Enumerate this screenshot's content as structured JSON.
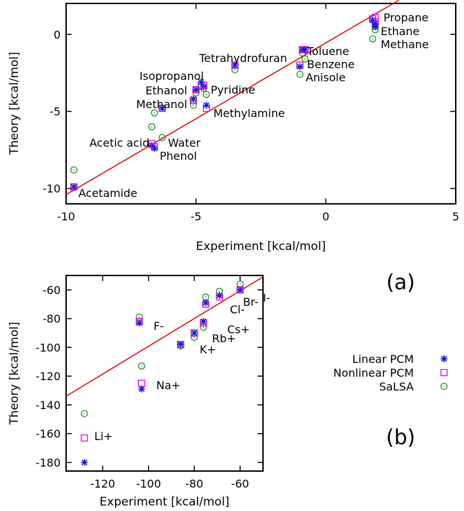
{
  "colors": {
    "linear": "#1b1bd6",
    "nonlinear": "#e400e4",
    "salsa": "#1f8f1f",
    "fit": "#e00000"
  },
  "legend": {
    "items": [
      {
        "label": "Linear PCM",
        "marker": "star"
      },
      {
        "label": "Nonlinear PCM",
        "marker": "square"
      },
      {
        "label": "SaLSA",
        "marker": "circle"
      }
    ]
  },
  "panel_labels": {
    "a": "(a)",
    "b": "(b)"
  },
  "chart_data": [
    {
      "type": "scatter",
      "panel": "(a)",
      "xlabel": "Experiment [kcal/mol]",
      "ylabel": "Theory [kcal/mol]",
      "xlim": [
        -10,
        5
      ],
      "ylim": [
        -11,
        2
      ],
      "xticks": [
        -10,
        -5,
        0,
        5
      ],
      "yticks": [
        -10,
        -5,
        0
      ],
      "fit_line": [
        [
          -10,
          -10.4
        ],
        [
          2.8,
          2.2
        ]
      ],
      "points": [
        {
          "name": "Propane",
          "x": 1.9,
          "linear": 0.7,
          "nonlinear": 1.1,
          "salsa": 0.5
        },
        {
          "name": "Ethane",
          "x": 1.9,
          "linear": 0.5,
          "nonlinear": 0.8,
          "salsa": 0.3
        },
        {
          "name": "Methane",
          "x": 1.8,
          "linear": 0.9,
          "nonlinear": 1.0,
          "salsa": -0.3
        },
        {
          "name": "Toluene",
          "x": -0.9,
          "linear": -1.0,
          "nonlinear": -1.0,
          "salsa": -1.2
        },
        {
          "name": "Benzene",
          "x": -0.8,
          "linear": -1.0,
          "nonlinear": -1.0,
          "salsa": -1.6
        },
        {
          "name": "Anisole",
          "x": -1.0,
          "linear": -2.1,
          "nonlinear": -2.0,
          "salsa": -2.6
        },
        {
          "name": "Tetrahydrofuran",
          "x": -3.5,
          "linear": -2.0,
          "nonlinear": -2.0,
          "salsa": -2.3
        },
        {
          "name": "Pyridine",
          "x": -4.7,
          "linear": -3.4,
          "nonlinear": -3.3,
          "salsa": -3.5
        },
        {
          "name": "Isopropanol",
          "x": -4.8,
          "linear": -3.1,
          "nonlinear": -3.3,
          "salsa": -3.4
        },
        {
          "name": "Ethanol",
          "x": -5.0,
          "linear": -3.6,
          "nonlinear": -3.6,
          "salsa": -3.8
        },
        {
          "name": "Methanol",
          "x": -5.1,
          "linear": -4.2,
          "nonlinear": -4.3,
          "salsa": -4.6
        },
        {
          "name": "Methylamine",
          "x": -4.6,
          "linear": -4.6,
          "nonlinear": -4.8,
          "salsa": -3.9
        },
        {
          "name": "Acetic acid",
          "x": -6.7,
          "linear": -7.2,
          "nonlinear": -7.1,
          "salsa": -6.0
        },
        {
          "name": "Water",
          "x": -6.3,
          "linear": -4.8,
          "nonlinear": -4.8,
          "salsa": -6.7
        },
        {
          "name": "Phenol",
          "x": -6.6,
          "linear": -7.4,
          "nonlinear": -7.3,
          "salsa": -5.1
        },
        {
          "name": "Acetamide",
          "x": -9.7,
          "linear": -9.9,
          "nonlinear": -9.9,
          "salsa": -8.8
        }
      ]
    },
    {
      "type": "scatter",
      "panel": "(b)",
      "xlabel": "Experiment [kcal/mol]",
      "ylabel": "Theory [kcal/mol]",
      "xlim": [
        -136,
        -50
      ],
      "ylim": [
        -186,
        -50
      ],
      "xticks": [
        -120,
        -100,
        -80,
        -60
      ],
      "yticks": [
        -180,
        -160,
        -140,
        -120,
        -100,
        -80,
        -60
      ],
      "fit_line": [
        [
          -136,
          -134
        ],
        [
          -50,
          -51
        ]
      ],
      "points": [
        {
          "name": "I-",
          "x": -60,
          "linear": -60,
          "nonlinear": -60,
          "salsa": -56
        },
        {
          "name": "Br-",
          "x": -69,
          "linear": -64,
          "nonlinear": -65,
          "salsa": -61
        },
        {
          "name": "Cl-",
          "x": -75,
          "linear": -69,
          "nonlinear": -70,
          "salsa": -65
        },
        {
          "name": "Cs+",
          "x": -76,
          "linear": -82,
          "nonlinear": -83,
          "salsa": -86
        },
        {
          "name": "Rb+",
          "x": -80,
          "linear": -90,
          "nonlinear": -90,
          "salsa": -93
        },
        {
          "name": "K+",
          "x": -86,
          "linear": -98,
          "nonlinear": -98,
          "salsa": -99
        },
        {
          "name": "F-",
          "x": -104,
          "linear": -83,
          "nonlinear": -82,
          "salsa": -79
        },
        {
          "name": "Na+",
          "x": -103,
          "linear": -129,
          "nonlinear": -125,
          "salsa": -113
        },
        {
          "name": "Li+",
          "x": -128,
          "linear": -180,
          "nonlinear": -163,
          "salsa": -146
        }
      ]
    }
  ]
}
